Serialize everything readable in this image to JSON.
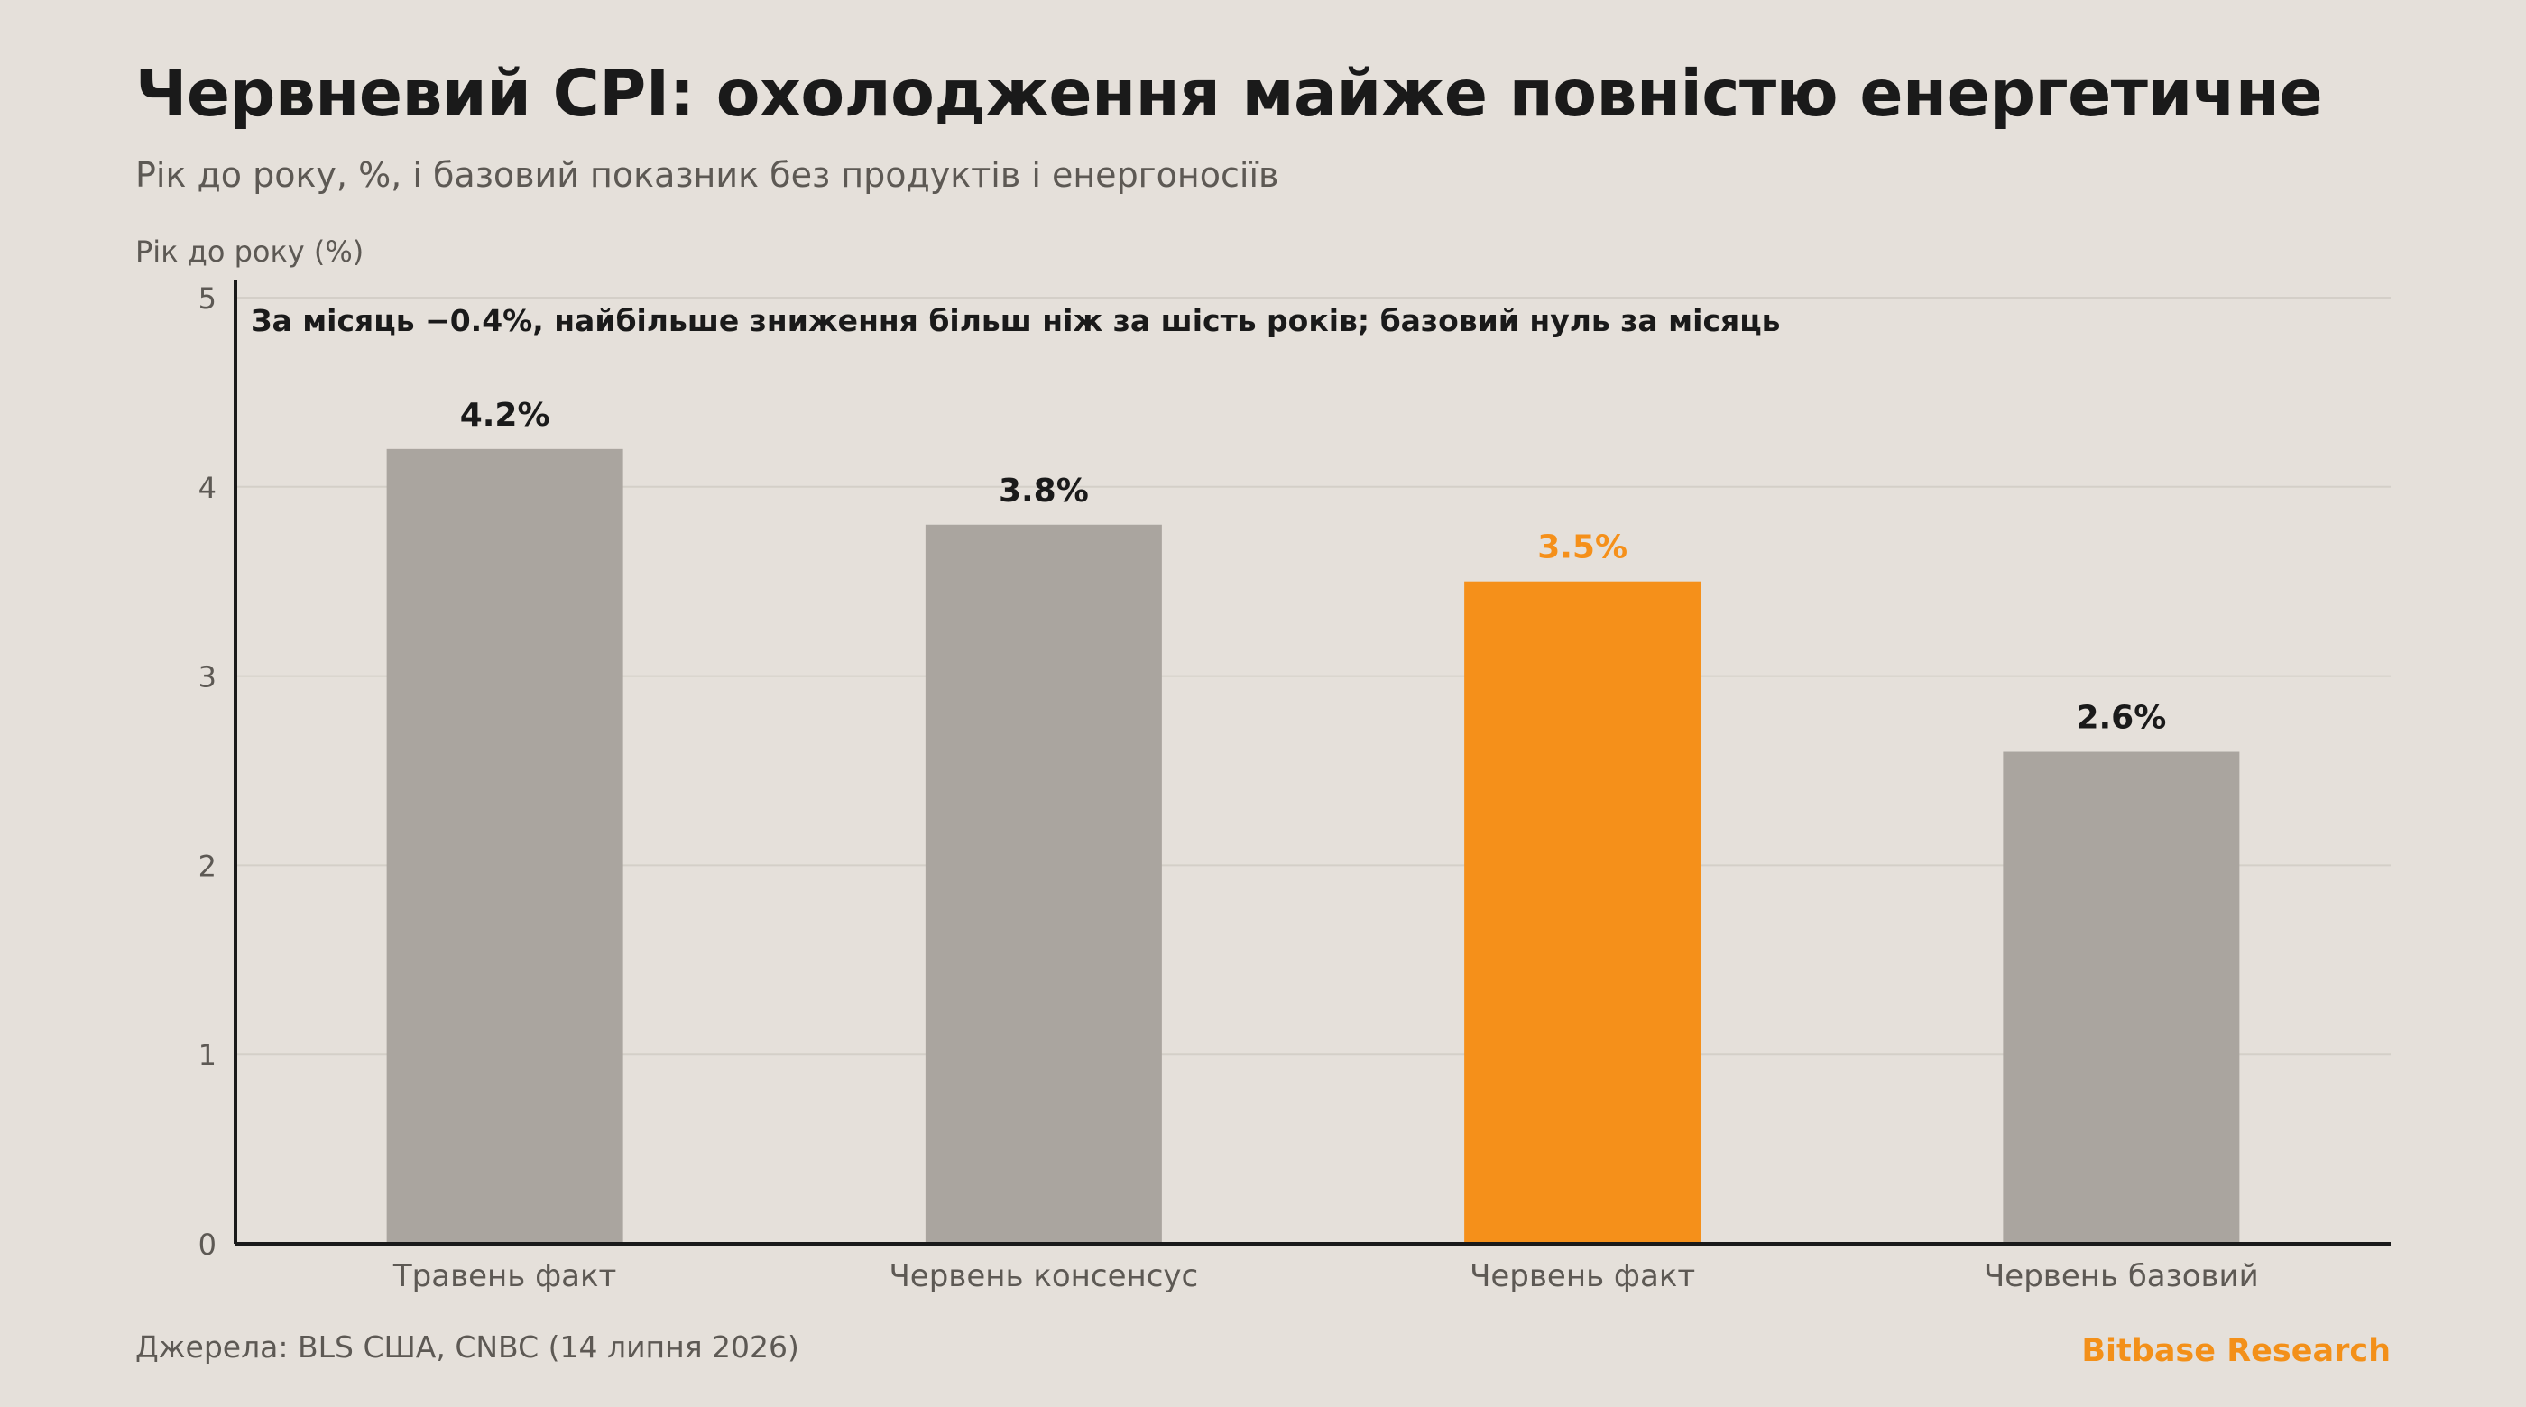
{
  "header": {
    "title": "Червневий CPI: охолодження майже повністю енергетичне",
    "subtitle": "Рік до року, %, і базовий показник без продуктів і енергоносіїв"
  },
  "footer": {
    "source": "Джерела: BLS США, CNBC (14 липня 2026)",
    "brand": "Bitbase Research"
  },
  "colors": {
    "background": "#e5e0da",
    "bar_default": "#aaa59f",
    "bar_highlight": "#f5901a",
    "gridline": "#d4cfc8",
    "axis": "#1a1a1a",
    "label_dark": "#1a1a1a",
    "tick_text": "#5d5954"
  },
  "chart_data": {
    "type": "bar",
    "title": "Червневий CPI: охолодження майже повністю енергетичне",
    "subtitle": "Рік до року, %, і базовий показник без продуктів і енергоносіїв",
    "ylabel": "Рік до року (%)",
    "xlabel": "",
    "categories": [
      "Травень факт",
      "Червень консенсус",
      "Червень факт",
      "Червень базовий"
    ],
    "values": [
      4.2,
      3.8,
      3.5,
      2.6
    ],
    "data_labels": [
      "4.2%",
      "3.8%",
      "3.5%",
      "2.6%"
    ],
    "highlight_index": 2,
    "ylim": [
      0,
      5
    ],
    "yticks": [
      "0",
      "1",
      "2",
      "3",
      "4",
      "5"
    ],
    "grid": true,
    "annotation": "За місяць −0.4%, найбільше зниження більш ніж за шість років; базовий нуль за місяць"
  }
}
